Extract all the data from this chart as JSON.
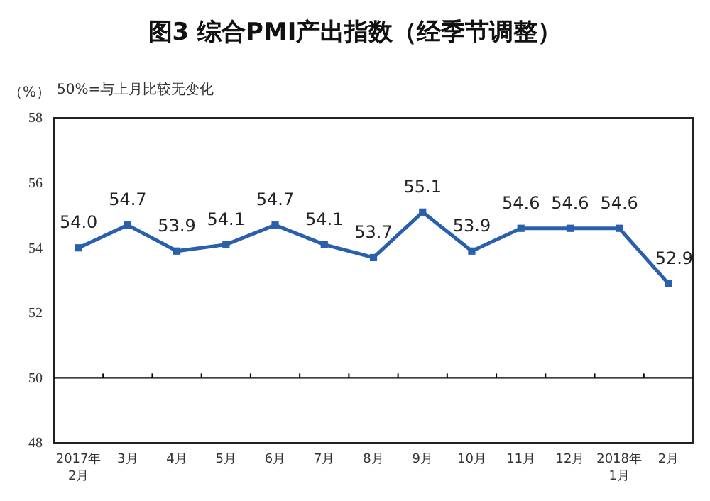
{
  "chart_data": {
    "type": "line",
    "title": "图3 综合PMI产出指数（经季节调整）",
    "ylabel": "（%）",
    "annotations": [
      "50%=与上月比较无变化"
    ],
    "categories": [
      "2017年\n2月",
      "3月",
      "4月",
      "5月",
      "6月",
      "7月",
      "8月",
      "9月",
      "10月",
      "11月",
      "12月",
      "2018年\n1月",
      "2月"
    ],
    "series": [
      {
        "color": "#2a5fae",
        "values": [
          54.0,
          54.7,
          53.9,
          54.1,
          54.7,
          54.1,
          53.7,
          55.1,
          53.9,
          54.6,
          54.6,
          54.6,
          52.9
        ],
        "value_labels": [
          "54.0",
          "54.7",
          "53.9",
          "54.1",
          "54.7",
          "54.1",
          "53.7",
          "55.1",
          "53.9",
          "54.6",
          "54.6",
          "54.6",
          "52.9"
        ]
      }
    ],
    "ylim": [
      48,
      58
    ],
    "yticks": [
      48,
      50,
      52,
      54,
      56,
      58
    ],
    "grid": false,
    "marker": "square",
    "line_style": "solid",
    "ref_lines": [
      {
        "axis": "y",
        "value": 50,
        "color": "#000000"
      }
    ]
  }
}
